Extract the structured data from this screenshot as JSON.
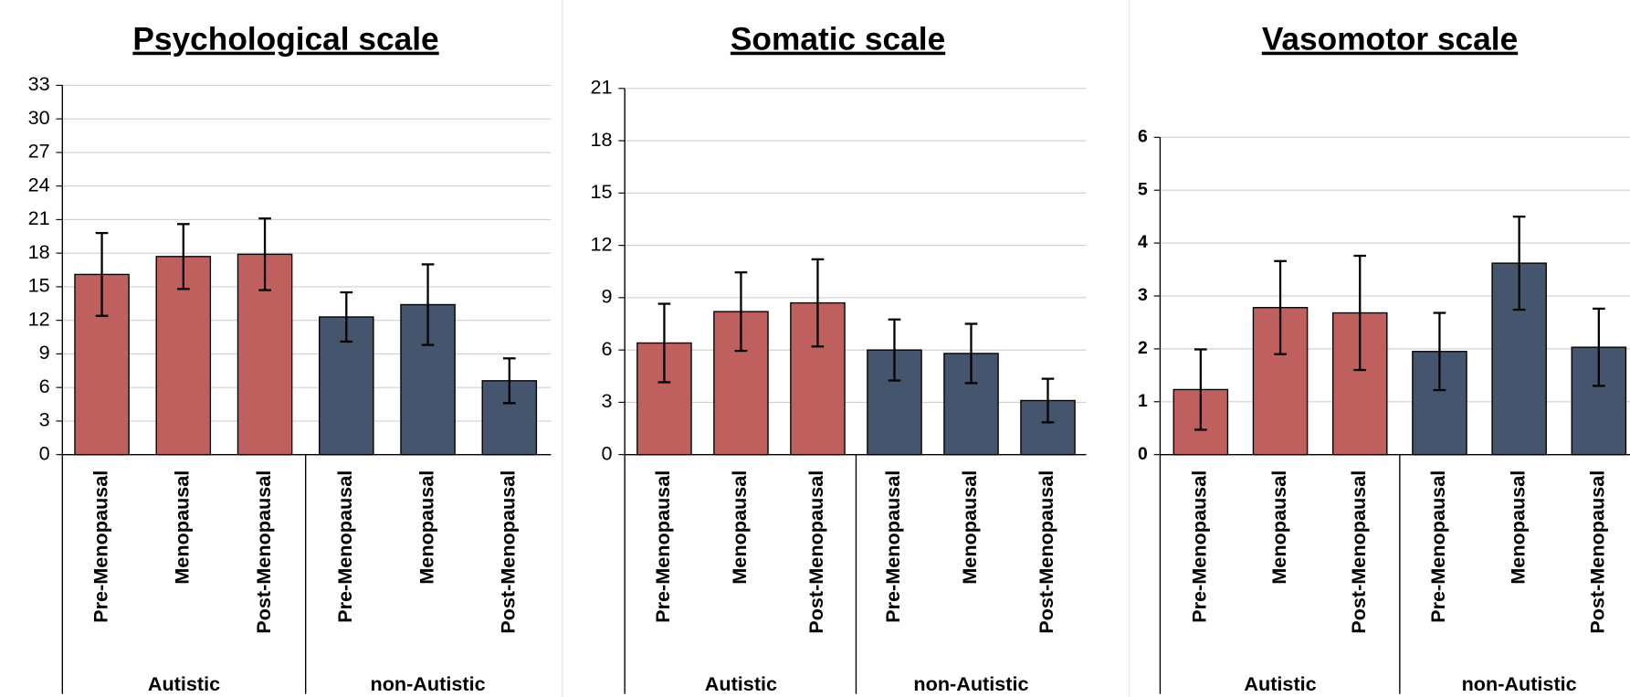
{
  "chart_data": [
    {
      "type": "bar",
      "title": "Psychological scale",
      "categories": [
        "Pre-Menopausal",
        "Menopausal",
        "Post-Menopausal",
        "Pre-Menopausal",
        "Menopausal",
        "Post-Menopausal"
      ],
      "groups": [
        "Autistic",
        "non-Autistic"
      ],
      "values": [
        16.1,
        17.7,
        17.9,
        12.3,
        13.4,
        6.6
      ],
      "errors": [
        3.7,
        2.9,
        3.2,
        2.2,
        3.6,
        2.0
      ],
      "colors": [
        "#c0605e",
        "#c0605e",
        "#c0605e",
        "#46556e",
        "#46556e",
        "#46556e"
      ],
      "ylim": [
        0,
        33
      ],
      "yticks": [
        0,
        3,
        6,
        9,
        12,
        15,
        18,
        21,
        24,
        27,
        30,
        33
      ],
      "grid": true
    },
    {
      "type": "bar",
      "title": "Somatic scale",
      "categories": [
        "Pre-Menopausal",
        "Menopausal",
        "Post-Menopausal",
        "Pre-Menopausal",
        "Menopausal",
        "Post-Menopausal"
      ],
      "groups": [
        "Autistic",
        "non-Autistic"
      ],
      "values": [
        6.4,
        8.2,
        8.7,
        6.0,
        5.8,
        3.1
      ],
      "errors": [
        2.25,
        2.25,
        2.5,
        1.75,
        1.7,
        1.25
      ],
      "colors": [
        "#c0605e",
        "#c0605e",
        "#c0605e",
        "#46556e",
        "#46556e",
        "#46556e"
      ],
      "ylim": [
        0,
        21
      ],
      "yticks": [
        0,
        3,
        6,
        9,
        12,
        15,
        18,
        21
      ],
      "grid": true
    },
    {
      "type": "bar",
      "title": "Vasomotor scale",
      "categories": [
        "Pre-Menopausal",
        "Menopausal",
        "Post-Menopausal",
        "Pre-Menopausal",
        "Menopausal",
        "Post-Menopausal"
      ],
      "groups": [
        "Autistic",
        "non-Autistic"
      ],
      "values": [
        1.23,
        2.78,
        2.68,
        1.95,
        3.62,
        2.03
      ],
      "errors": [
        0.76,
        0.88,
        1.08,
        0.73,
        0.88,
        0.73
      ],
      "colors": [
        "#c0605e",
        "#c0605e",
        "#c0605e",
        "#46556e",
        "#46556e",
        "#46556e"
      ],
      "ylim": [
        0,
        6
      ],
      "yticks": [
        0,
        1,
        2,
        3,
        4,
        5,
        6
      ],
      "grid": true
    }
  ]
}
